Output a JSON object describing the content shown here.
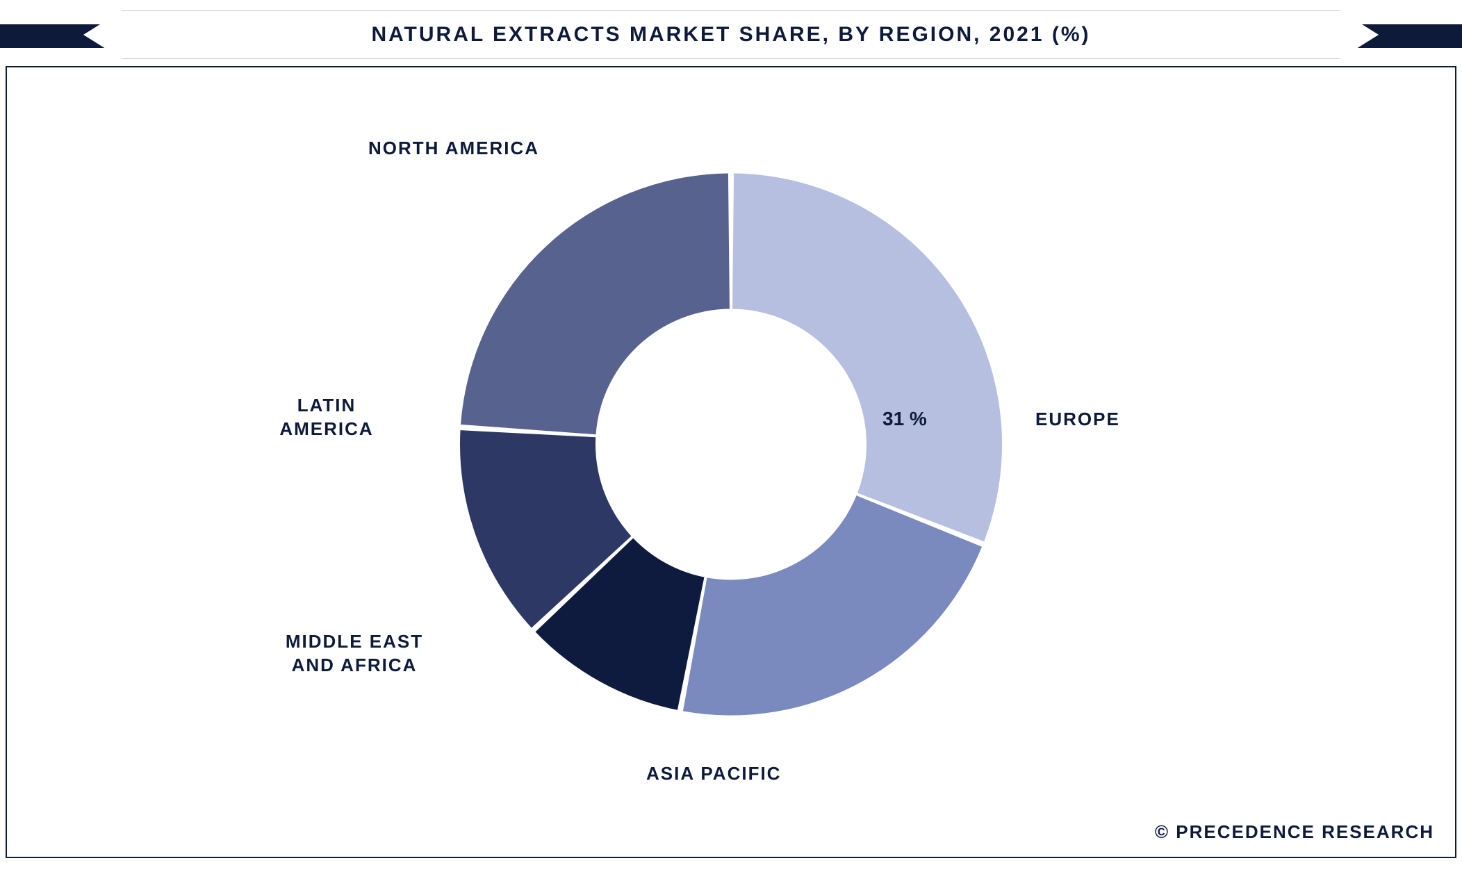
{
  "title": "NATURAL EXTRACTS MARKET SHARE, BY REGION, 2021 (%)",
  "chart": {
    "type": "donut",
    "inner_radius_ratio": 0.5,
    "outer_radius": 390,
    "background_color": "#ffffff",
    "border_color": "#0d1a3a",
    "title_bar_stripe_color": "#0d1a3a",
    "slice_gap_color": "#ffffff",
    "slices": [
      {
        "label": "EUROPE",
        "value": 31,
        "color": "#b7bfe0",
        "show_value": true
      },
      {
        "label": "ASIA PACIFIC",
        "value": 22,
        "color": "#7a8abf",
        "show_value": false
      },
      {
        "label": "MIDDLE EAST AND AFRICA",
        "value": 10,
        "color": "#0f1a3f",
        "show_value": false
      },
      {
        "label": "LATIN AMERICA",
        "value": 13,
        "color": "#2d3865",
        "show_value": false
      },
      {
        "label": "NORTH AMERICA",
        "value": 24,
        "color": "#58628f",
        "show_value": false
      }
    ],
    "label_fontsize": 26,
    "value_fontsize": 28,
    "title_fontsize": 30,
    "label_color": "#0d1a3a"
  },
  "copyright": "© PRECEDENCE RESEARCH",
  "label_positions": {
    "europe": "EUROPE",
    "asia_pacific": "ASIA PACIFIC",
    "mea_line1": "MIDDLE EAST",
    "mea_line2": "AND AFRICA",
    "latam_line1": "LATIN",
    "latam_line2": "AMERICA",
    "north_america": "NORTH AMERICA",
    "europe_value": "31 %"
  }
}
